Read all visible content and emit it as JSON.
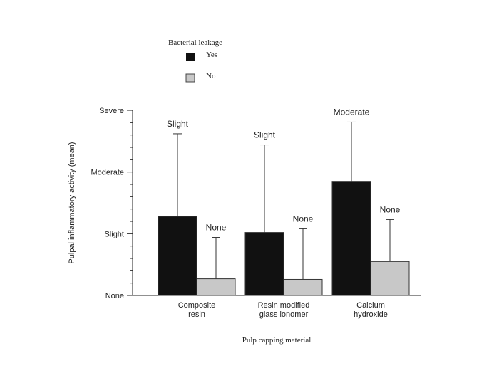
{
  "chart_data": {
    "type": "bar",
    "xlabel": "Pulp capping material",
    "ylabel": "Pulpal inflammatory activity (mean)",
    "legend": {
      "title": "Bacterial leakage",
      "placement": "top-left",
      "entries": [
        "Yes",
        "No"
      ]
    },
    "categories": [
      [
        "Composite",
        "resin"
      ],
      [
        "Resin modified",
        "glass ionomer"
      ],
      [
        "Calcium",
        "hydroxide"
      ]
    ],
    "ylim": [
      0,
      3
    ],
    "yticks": [
      {
        "value": 0,
        "label": "None"
      },
      {
        "value": 1,
        "label": "Slight"
      },
      {
        "value": 2,
        "label": "Moderate"
      },
      {
        "value": 3,
        "label": "Severe"
      }
    ],
    "series": [
      {
        "name": "Yes",
        "color": "#111111",
        "values": [
          1.28,
          1.02,
          1.85
        ],
        "error_upper": [
          2.62,
          2.44,
          2.81
        ],
        "annotations": [
          "Slight",
          "Slight",
          "Moderate"
        ]
      },
      {
        "name": "No",
        "color": "#c8c8c8",
        "values": [
          0.27,
          0.26,
          0.55
        ],
        "error_upper": [
          0.94,
          1.08,
          1.23
        ],
        "annotations": [
          "None",
          "None",
          "None"
        ]
      }
    ]
  }
}
